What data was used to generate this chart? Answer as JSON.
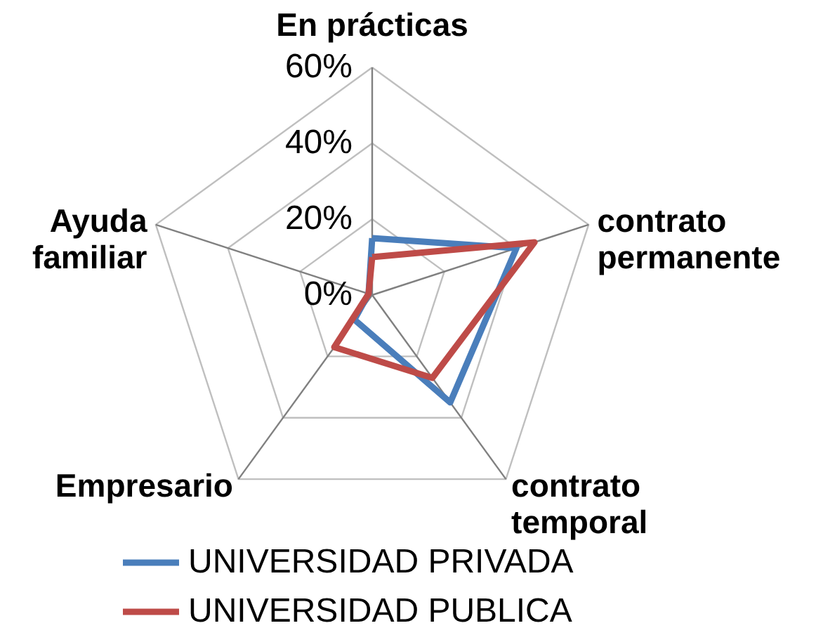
{
  "chart_data": {
    "type": "radar",
    "categories": [
      "En prácticas",
      "contrato permanente",
      "contrato temporal",
      "Empresario",
      "Ayuda familiar"
    ],
    "series": [
      {
        "name": "UNIVERSIDAD PRIVADA",
        "color": "#4a7ebb",
        "values": [
          15,
          40,
          35,
          8,
          1
        ]
      },
      {
        "name": "UNIVERSIDAD PUBLICA",
        "color": "#be4b48",
        "values": [
          10,
          45,
          27,
          17,
          1
        ]
      }
    ],
    "ylim": [
      0,
      60
    ],
    "yticks": [
      {
        "value": 0,
        "label": "0%"
      },
      {
        "value": 20,
        "label": "20%"
      },
      {
        "value": 40,
        "label": "40%"
      },
      {
        "value": 60,
        "label": "60%"
      }
    ],
    "grid": true,
    "legend": "bottom",
    "line_style": "solid",
    "marker": "none"
  }
}
